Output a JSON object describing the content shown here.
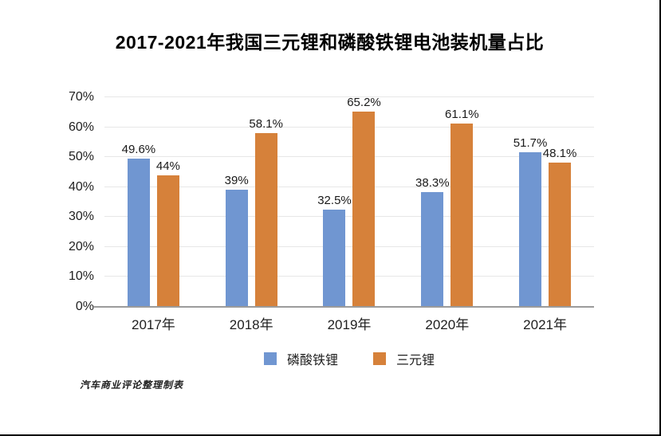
{
  "title": "2017-2021年我国三元锂和磷酸铁锂电池装机量占比",
  "footnote": "汽车商业评论整理制表",
  "chart_data": {
    "type": "bar",
    "title": "2017-2021年我国三元锂和磷酸铁锂电池装机量占比",
    "categories": [
      "2017年",
      "2018年",
      "2019年",
      "2020年",
      "2021年"
    ],
    "series": [
      {
        "name": "磷酸铁锂",
        "color": "#7096D1",
        "values": [
          49.6,
          39,
          32.5,
          38.3,
          51.7
        ],
        "labels": [
          "49.6%",
          "39%",
          "32.5%",
          "38.3%",
          "51.7%"
        ]
      },
      {
        "name": "三元锂",
        "color": "#D6813A",
        "values": [
          44,
          58.1,
          65.2,
          61.1,
          48.1
        ],
        "labels": [
          "44%",
          "58.1%",
          "65.2%",
          "61.1%",
          "48.1%"
        ]
      }
    ],
    "yticks": [
      "0%",
      "10%",
      "20%",
      "30%",
      "40%",
      "50%",
      "60%",
      "70%"
    ],
    "ylim": [
      0,
      70
    ],
    "grid": true,
    "legend_position": "bottom",
    "source_note": "汽车商业评论整理制表"
  }
}
